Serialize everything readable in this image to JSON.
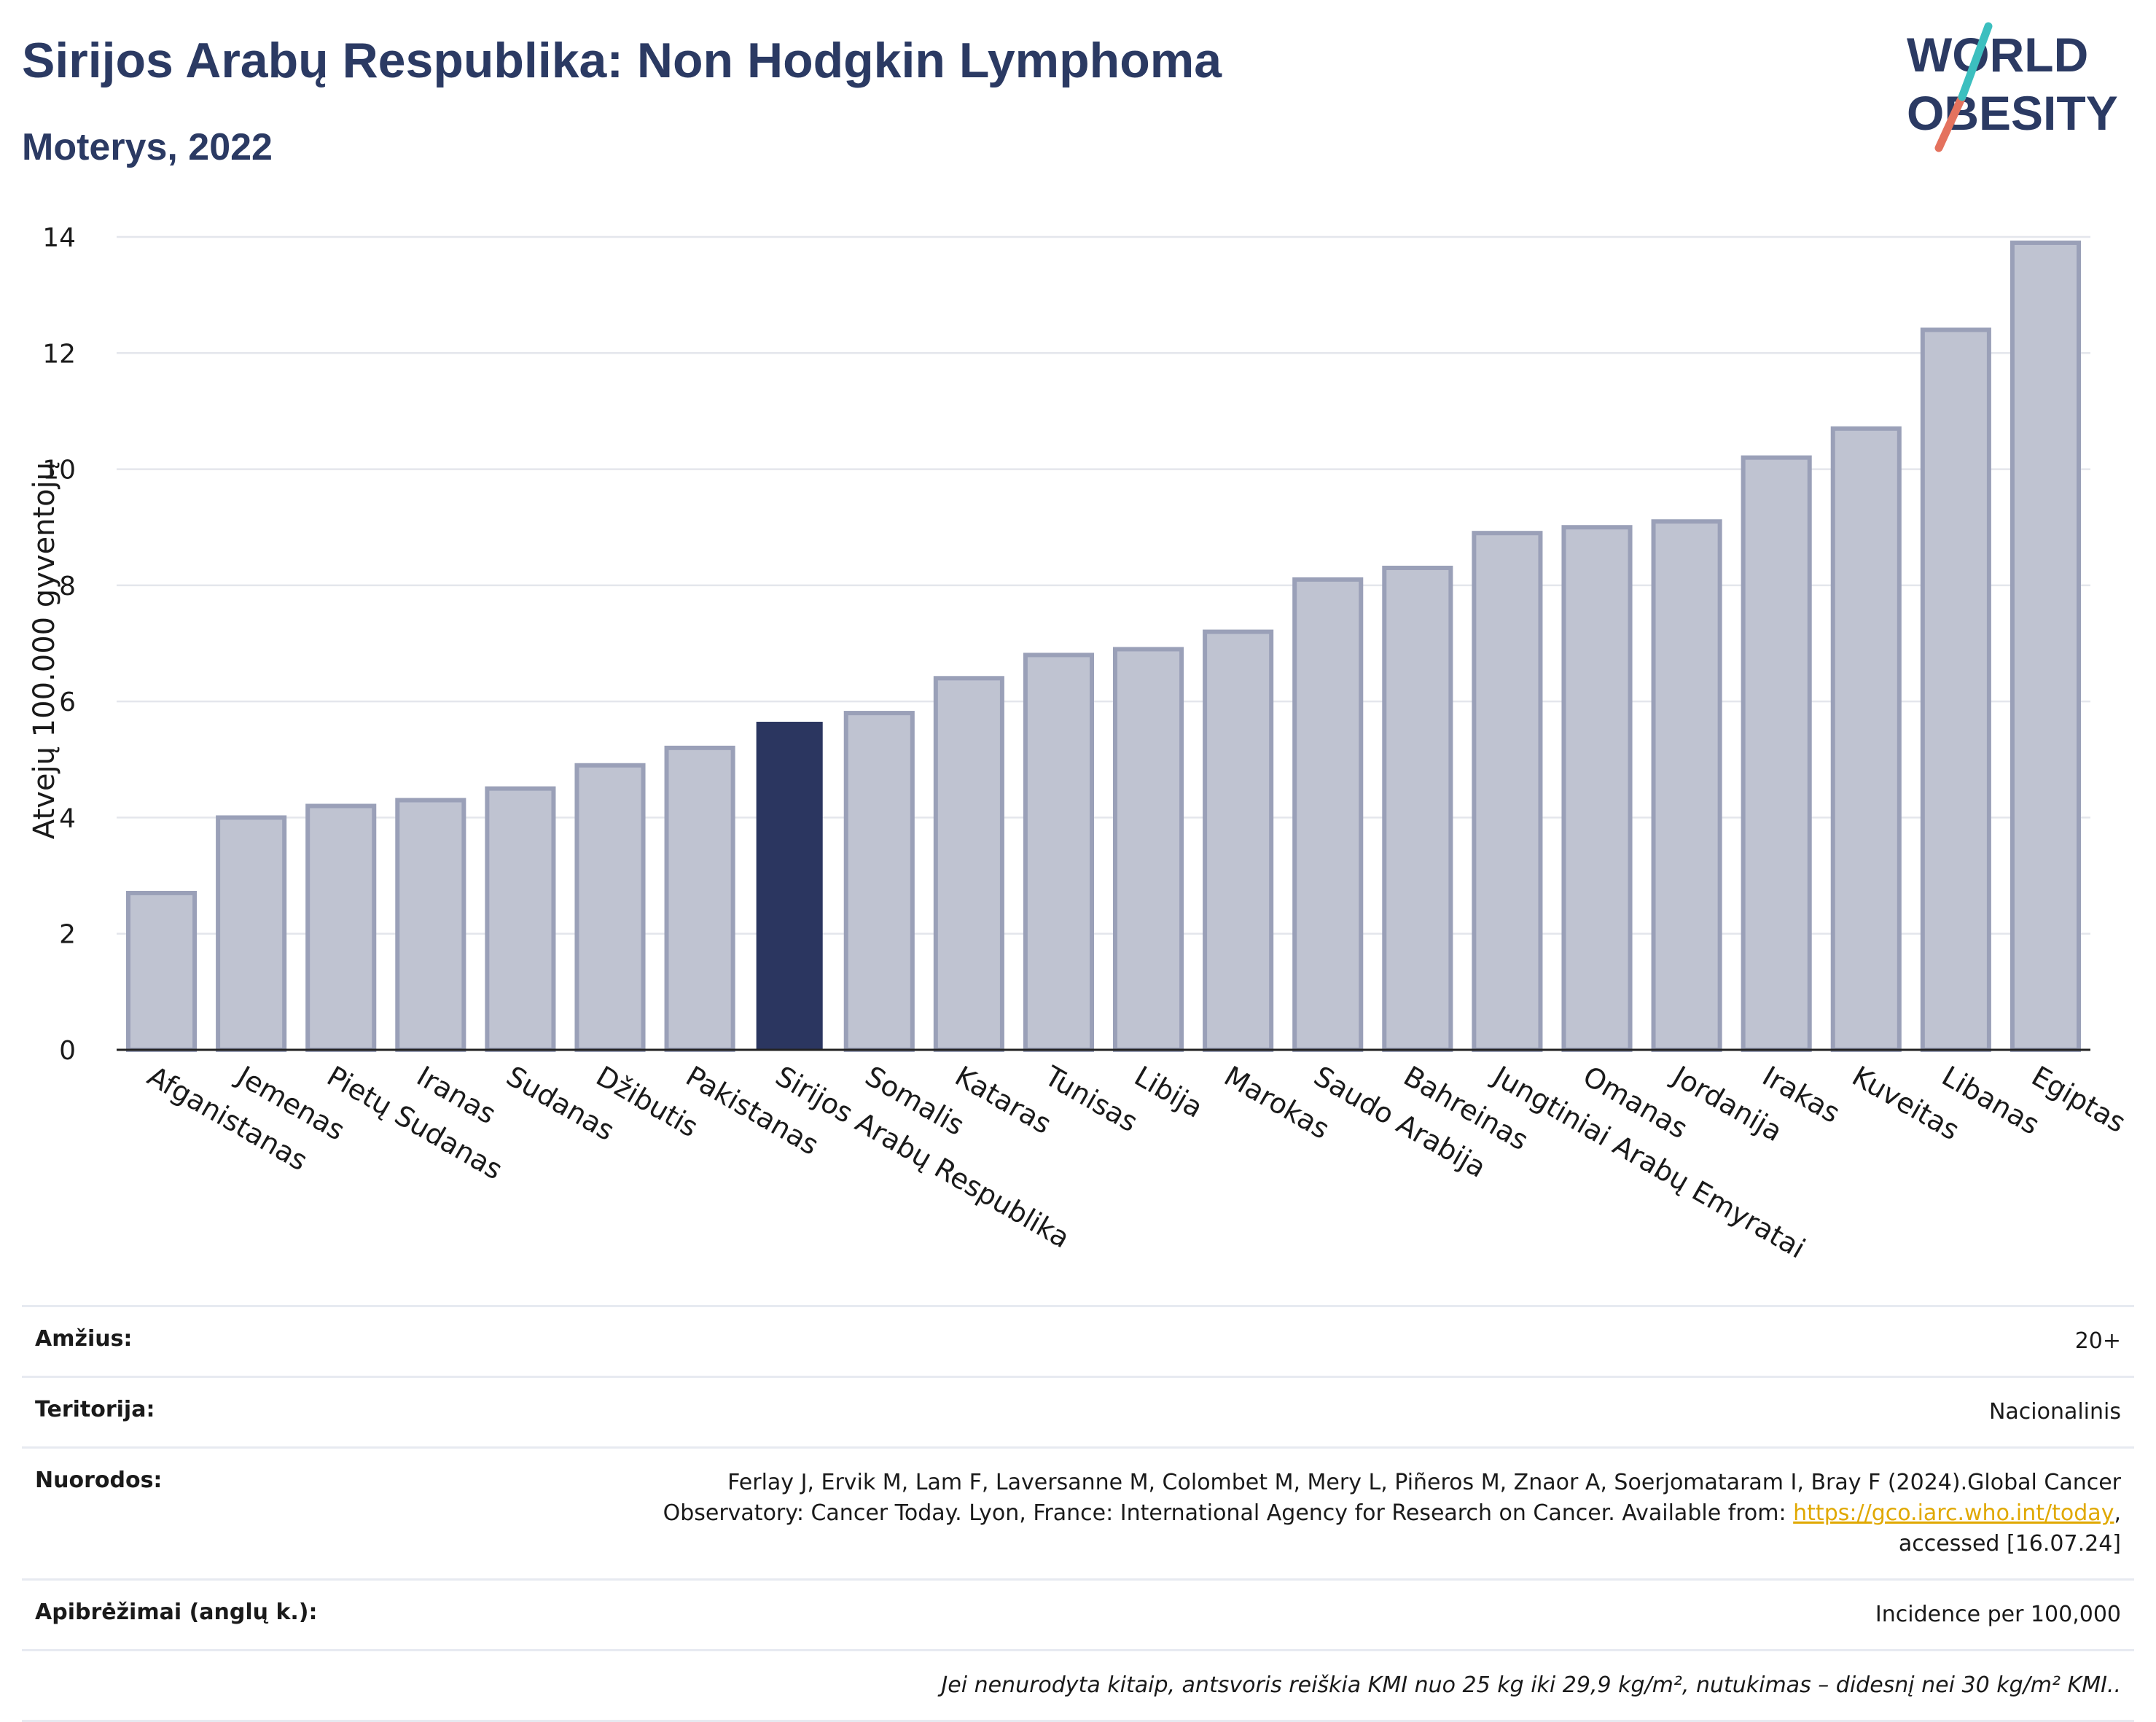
{
  "title": "Sirijos Arabų Respublika: Non Hodgkin Lymphoma",
  "subtitle": "Moterys, 2022",
  "logo": {
    "line1": "WORLD",
    "line2": "OBESITY"
  },
  "colors": {
    "bar": "#bfc3d1",
    "bar_stroke": "#9aa0b8",
    "highlight": "#2b3660",
    "title": "#2b3a63",
    "grid": "#e4e6ec"
  },
  "chart_data": {
    "type": "bar",
    "ylabel": "Atvejų 100.000 gyventojų",
    "ylim": [
      0,
      14
    ],
    "yticks": [
      0,
      2,
      4,
      6,
      8,
      10,
      12,
      14
    ],
    "grid": true,
    "highlight": "Sirijos Arabų Respublika",
    "categories": [
      "Afganistanas",
      "Jemenas",
      "Pietų Sudanas",
      "Iranas",
      "Sudanas",
      "Džibutis",
      "Pakistanas",
      "Sirijos Arabų Respublika",
      "Somalis",
      "Kataras",
      "Tunisas",
      "Libija",
      "Marokas",
      "Saudo Arabija",
      "Bahreinas",
      "Jungtiniai Arabų Emyratai",
      "Omanas",
      "Jordanija",
      "Irakas",
      "Kuveitas",
      "Libanas",
      "Egiptas"
    ],
    "values": [
      2.7,
      4.0,
      4.2,
      4.3,
      4.5,
      4.9,
      5.2,
      5.65,
      5.8,
      6.4,
      6.8,
      6.9,
      7.2,
      8.1,
      8.3,
      8.9,
      9.0,
      9.1,
      10.2,
      10.7,
      12.4,
      13.9
    ]
  },
  "info": {
    "age_label": "Amžius:",
    "age_value": "20+",
    "territory_label": "Teritorija:",
    "territory_value": "Nacionalinis",
    "refs_label": "Nuorodos:",
    "refs_text_1": "Ferlay J, Ervik M, Lam F, Laversanne M, Colombet M, Mery L, Piñeros M, Znaor A, Soerjomataram I, Bray F (2024).Global Cancer",
    "refs_text_2": "Observatory: Cancer Today. Lyon, France: International Agency for Research on Cancer. Available from: ",
    "refs_link": "https://gco.iarc.who.int/today",
    "refs_text_3": ",",
    "refs_text_4": "accessed [16.07.24]",
    "defs_label": "Apibrėžimai (anglų k.):",
    "defs_value": "Incidence per 100,000",
    "note": "Jei nenurodyta kitaip, antsvoris reiškia KMI nuo 25 kg iki 29,9 kg/m², nutukimas – didesnį nei 30 kg/m² KMI.."
  }
}
